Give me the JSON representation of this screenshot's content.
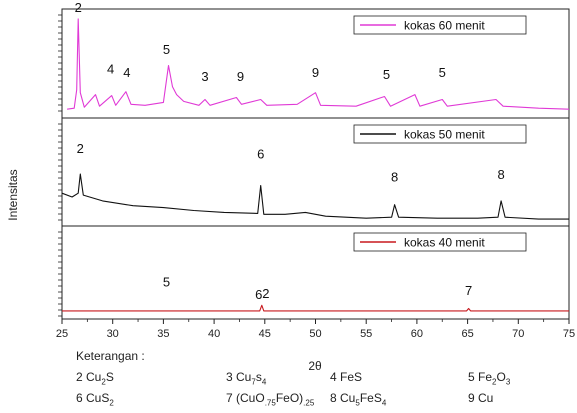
{
  "chart_data": {
    "type": "line",
    "ylabel": "Intensitas",
    "xlabel": "2θ",
    "xlim": [
      25,
      75
    ],
    "x_ticks": [
      "25",
      "30",
      "35",
      "40",
      "45",
      "50",
      "55",
      "60",
      "65",
      "70",
      "75"
    ],
    "panels": [
      {
        "legend": "kokas 60 menit",
        "color": "#e03ad6",
        "series": [
          {
            "x": 25.5,
            "y": 0.05
          },
          {
            "x": 26.2,
            "y": 0.06
          },
          {
            "x": 26.45,
            "y": 0.25
          },
          {
            "x": 26.6,
            "y": 0.98
          },
          {
            "x": 26.8,
            "y": 0.22
          },
          {
            "x": 27.2,
            "y": 0.07
          },
          {
            "x": 28.3,
            "y": 0.2
          },
          {
            "x": 28.7,
            "y": 0.08
          },
          {
            "x": 29.9,
            "y": 0.19
          },
          {
            "x": 30.3,
            "y": 0.09
          },
          {
            "x": 31.3,
            "y": 0.23
          },
          {
            "x": 31.8,
            "y": 0.1
          },
          {
            "x": 33.2,
            "y": 0.09
          },
          {
            "x": 35.0,
            "y": 0.12
          },
          {
            "x": 35.5,
            "y": 0.5
          },
          {
            "x": 35.9,
            "y": 0.28
          },
          {
            "x": 36.3,
            "y": 0.2
          },
          {
            "x": 37.0,
            "y": 0.13
          },
          {
            "x": 38.5,
            "y": 0.09
          },
          {
            "x": 39.1,
            "y": 0.15
          },
          {
            "x": 39.6,
            "y": 0.09
          },
          {
            "x": 42.2,
            "y": 0.17
          },
          {
            "x": 42.7,
            "y": 0.1
          },
          {
            "x": 44.6,
            "y": 0.15
          },
          {
            "x": 45.2,
            "y": 0.09
          },
          {
            "x": 48.2,
            "y": 0.1
          },
          {
            "x": 50.0,
            "y": 0.22
          },
          {
            "x": 50.5,
            "y": 0.09
          },
          {
            "x": 54.0,
            "y": 0.08
          },
          {
            "x": 56.8,
            "y": 0.18
          },
          {
            "x": 57.4,
            "y": 0.08
          },
          {
            "x": 59.8,
            "y": 0.2
          },
          {
            "x": 60.3,
            "y": 0.08
          },
          {
            "x": 62.5,
            "y": 0.15
          },
          {
            "x": 63.0,
            "y": 0.08
          },
          {
            "x": 67.8,
            "y": 0.15
          },
          {
            "x": 68.5,
            "y": 0.08
          },
          {
            "x": 72.0,
            "y": 0.06
          },
          {
            "x": 75.0,
            "y": 0.05
          }
        ],
        "annotations": [
          {
            "label": "2",
            "x": 26.6,
            "y": 1.05
          },
          {
            "label": "4",
            "x": 29.8,
            "y": 0.42
          },
          {
            "label": "4",
            "x": 31.4,
            "y": 0.38
          },
          {
            "label": "5",
            "x": 35.3,
            "y": 0.62
          },
          {
            "label": "3",
            "x": 39.1,
            "y": 0.34
          },
          {
            "label": "9",
            "x": 42.6,
            "y": 0.34
          },
          {
            "label": "9",
            "x": 50.0,
            "y": 0.38
          },
          {
            "label": "5",
            "x": 57.0,
            "y": 0.36
          },
          {
            "label": "5",
            "x": 62.5,
            "y": 0.38
          }
        ]
      },
      {
        "legend": "kokas 50 menit",
        "color": "#111111",
        "series": [
          {
            "x": 25.0,
            "y": 0.3
          },
          {
            "x": 26.0,
            "y": 0.26
          },
          {
            "x": 26.6,
            "y": 0.3
          },
          {
            "x": 26.8,
            "y": 0.5
          },
          {
            "x": 27.1,
            "y": 0.28
          },
          {
            "x": 29.0,
            "y": 0.22
          },
          {
            "x": 32.0,
            "y": 0.17
          },
          {
            "x": 35.0,
            "y": 0.15
          },
          {
            "x": 38.0,
            "y": 0.12
          },
          {
            "x": 41.0,
            "y": 0.1
          },
          {
            "x": 44.3,
            "y": 0.09
          },
          {
            "x": 44.6,
            "y": 0.38
          },
          {
            "x": 44.9,
            "y": 0.08
          },
          {
            "x": 47.0,
            "y": 0.08
          },
          {
            "x": 49.0,
            "y": 0.1
          },
          {
            "x": 51.0,
            "y": 0.06
          },
          {
            "x": 55.0,
            "y": 0.04
          },
          {
            "x": 57.5,
            "y": 0.05
          },
          {
            "x": 57.8,
            "y": 0.18
          },
          {
            "x": 58.2,
            "y": 0.05
          },
          {
            "x": 62.0,
            "y": 0.04
          },
          {
            "x": 66.0,
            "y": 0.04
          },
          {
            "x": 68.0,
            "y": 0.05
          },
          {
            "x": 68.3,
            "y": 0.22
          },
          {
            "x": 68.7,
            "y": 0.05
          },
          {
            "x": 72.0,
            "y": 0.03
          },
          {
            "x": 75.0,
            "y": 0.03
          }
        ],
        "annotations": [
          {
            "label": "2",
            "x": 26.8,
            "y": 0.72
          },
          {
            "label": "6",
            "x": 44.6,
            "y": 0.66
          },
          {
            "label": "8",
            "x": 57.8,
            "y": 0.42
          },
          {
            "label": "8",
            "x": 68.3,
            "y": 0.45
          }
        ]
      },
      {
        "legend": "kokas 40 menit",
        "color": "#c8191e",
        "series": [
          {
            "x": 25.0,
            "y": 0.05
          },
          {
            "x": 30.0,
            "y": 0.05
          },
          {
            "x": 35.0,
            "y": 0.05
          },
          {
            "x": 40.0,
            "y": 0.05
          },
          {
            "x": 44.5,
            "y": 0.05
          },
          {
            "x": 44.7,
            "y": 0.12
          },
          {
            "x": 44.9,
            "y": 0.05
          },
          {
            "x": 50.0,
            "y": 0.05
          },
          {
            "x": 55.0,
            "y": 0.05
          },
          {
            "x": 60.0,
            "y": 0.05
          },
          {
            "x": 64.9,
            "y": 0.05
          },
          {
            "x": 65.1,
            "y": 0.08
          },
          {
            "x": 65.3,
            "y": 0.05
          },
          {
            "x": 70.0,
            "y": 0.05
          },
          {
            "x": 75.0,
            "y": 0.05
          }
        ],
        "annotations": [
          {
            "label": "5",
            "x": 35.3,
            "y": 0.35
          },
          {
            "label": "6",
            "x": 44.4,
            "y": 0.2
          },
          {
            "label": "2",
            "x": 45.1,
            "y": 0.21
          },
          {
            "label": "7",
            "x": 65.1,
            "y": 0.25
          }
        ]
      }
    ]
  },
  "keterangan": {
    "title": "Keterangan :",
    "items": [
      {
        "num": "2",
        "base": "Cu",
        "sub": "2",
        "rest": "S"
      },
      {
        "num": "3",
        "base": "Cu",
        "sub": "7",
        "rest": "s",
        "sub2": "4"
      },
      {
        "num": "4",
        "base": "FeS",
        "sub": "",
        "rest": ""
      },
      {
        "num": "5",
        "base": "Fe",
        "sub": "2",
        "rest": "O",
        "sub2": "3"
      },
      {
        "num": "6",
        "base": "CuS",
        "sub": "2",
        "rest": ""
      },
      {
        "num": "7",
        "base": "(CuO",
        "sub": ".75",
        "rest": "FeO)",
        "sub2": ".25"
      },
      {
        "num": "8",
        "base": "Cu",
        "sub": "5",
        "rest": "FeS",
        "sub2": "4"
      },
      {
        "num": "9",
        "base": "Cu",
        "sub": "",
        "rest": ""
      }
    ]
  }
}
